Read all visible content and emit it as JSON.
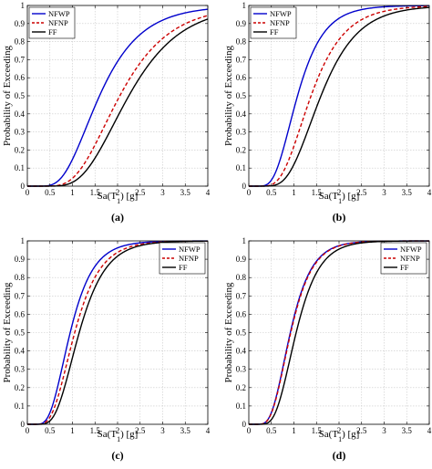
{
  "figure": {
    "panel_labels": [
      "(a)",
      "(b)",
      "(c)",
      "(d)"
    ]
  },
  "chart_data": [
    {
      "type": "line",
      "panel_label": "(a)",
      "xlabel_main": "Sa(T",
      "xlabel_sub": "1",
      "xlabel_tail": ") [g]",
      "ylabel": "Probability of Exceeding",
      "xlim": [
        0,
        4
      ],
      "ylim": [
        0,
        1
      ],
      "x_ticks": [
        "0",
        "0.5",
        "1",
        "1.5",
        "2",
        "2.5",
        "3",
        "3.5",
        "4"
      ],
      "y_ticks": [
        "0",
        "0.1",
        "0.2",
        "0.3",
        "0.4",
        "0.5",
        "0.6",
        "0.7",
        "0.8",
        "0.9",
        "1"
      ],
      "grid": true,
      "legend_position": "top-left",
      "series": [
        {
          "name": "NFWP",
          "color": "#0000cc",
          "style": "solid",
          "median": 1.6,
          "beta": 0.45
        },
        {
          "name": "NFNP",
          "color": "#cc0000",
          "style": "dashed",
          "median": 2.05,
          "beta": 0.42
        },
        {
          "name": "FF",
          "color": "#000000",
          "style": "solid",
          "median": 2.25,
          "beta": 0.4
        }
      ]
    },
    {
      "type": "line",
      "panel_label": "(b)",
      "xlabel_main": "Sa(T",
      "xlabel_sub": "1",
      "xlabel_tail": ") [g]",
      "ylabel": "Probability of Exceeding",
      "xlim": [
        0,
        4
      ],
      "ylim": [
        0,
        1
      ],
      "x_ticks": [
        "0",
        "0.5",
        "1",
        "1.5",
        "2",
        "2.5",
        "3",
        "3.5",
        "4"
      ],
      "y_ticks": [
        "0",
        "0.1",
        "0.2",
        "0.3",
        "0.4",
        "0.5",
        "0.6",
        "0.7",
        "0.8",
        "0.9",
        "1"
      ],
      "grid": true,
      "legend_position": "top-left",
      "series": [
        {
          "name": "NFWP",
          "color": "#0000cc",
          "style": "solid",
          "median": 1.08,
          "beta": 0.42
        },
        {
          "name": "NFNP",
          "color": "#cc0000",
          "style": "dashed",
          "median": 1.38,
          "beta": 0.42
        },
        {
          "name": "FF",
          "color": "#000000",
          "style": "solid",
          "median": 1.6,
          "beta": 0.4
        }
      ]
    },
    {
      "type": "line",
      "panel_label": "(c)",
      "xlabel_main": "Sa(T",
      "xlabel_sub": "1",
      "xlabel_tail": ") [g]",
      "ylabel": "Probability of Exceeding",
      "xlim": [
        0,
        4
      ],
      "ylim": [
        0,
        1
      ],
      "x_ticks": [
        "0",
        "0.5",
        "1",
        "1.5",
        "2",
        "2.5",
        "3",
        "3.5",
        "4"
      ],
      "y_ticks": [
        "0",
        "0.1",
        "0.2",
        "0.3",
        "0.4",
        "0.5",
        "0.6",
        "0.7",
        "0.8",
        "0.9",
        "1"
      ],
      "grid": true,
      "legend_position": "top-right",
      "series": [
        {
          "name": "NFWP",
          "color": "#0000cc",
          "style": "solid",
          "median": 0.95,
          "beta": 0.42
        },
        {
          "name": "NFNP",
          "color": "#cc0000",
          "style": "dashed",
          "median": 1.05,
          "beta": 0.42
        },
        {
          "name": "FF",
          "color": "#000000",
          "style": "solid",
          "median": 1.15,
          "beta": 0.4
        }
      ]
    },
    {
      "type": "line",
      "panel_label": "(d)",
      "xlabel_main": "Sa(T",
      "xlabel_sub": "1",
      "xlabel_tail": ") [g]",
      "ylabel": "Probability of Exceeding",
      "xlim": [
        0,
        4
      ],
      "ylim": [
        0,
        1
      ],
      "x_ticks": [
        "0",
        "0.5",
        "1",
        "1.5",
        "2",
        "2.5",
        "3",
        "3.5",
        "4"
      ],
      "y_ticks": [
        "0",
        "0.1",
        "0.2",
        "0.3",
        "0.4",
        "0.5",
        "0.6",
        "0.7",
        "0.8",
        "0.9",
        "1"
      ],
      "grid": true,
      "legend_position": "top-right",
      "series": [
        {
          "name": "NFWP",
          "color": "#0000cc",
          "style": "solid",
          "median": 0.92,
          "beta": 0.4
        },
        {
          "name": "NFNP",
          "color": "#cc0000",
          "style": "dashed",
          "median": 0.93,
          "beta": 0.4
        },
        {
          "name": "FF",
          "color": "#000000",
          "style": "solid",
          "median": 1.05,
          "beta": 0.38
        }
      ]
    }
  ]
}
